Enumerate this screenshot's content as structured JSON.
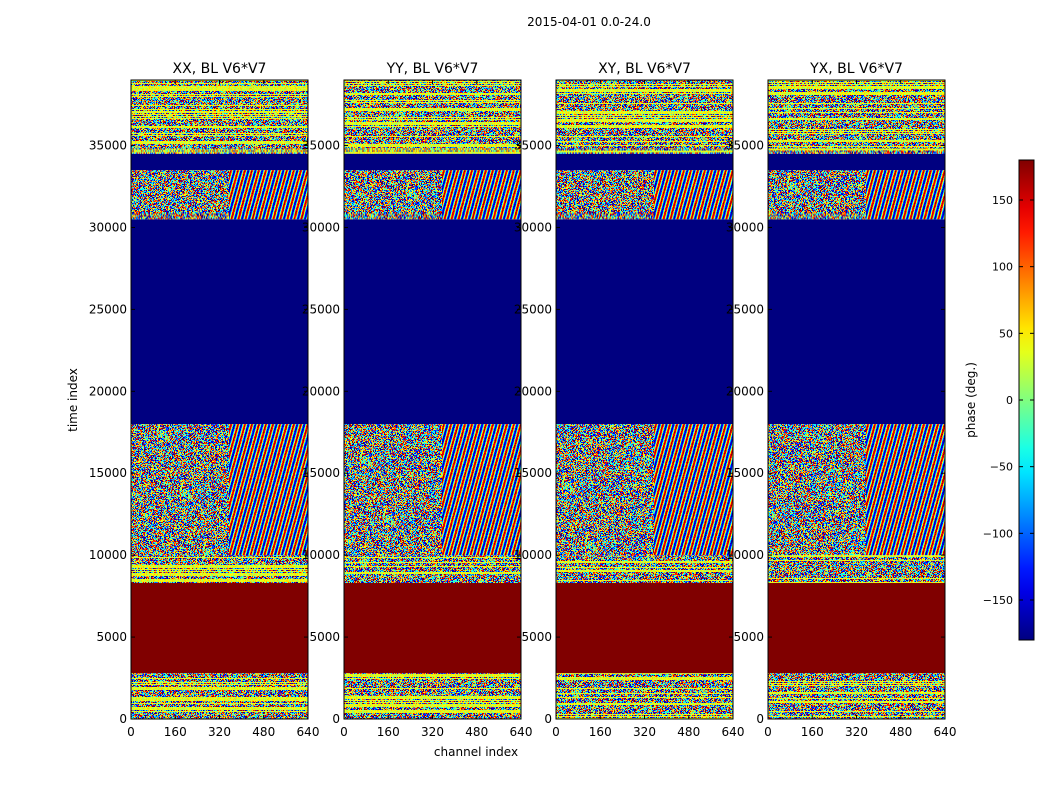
{
  "chart_data": {
    "type": "heatmap",
    "suptitle": "2015-04-01 0.0-24.0",
    "xlabel": "channel index",
    "ylabel": "time index",
    "xlim": [
      0,
      640
    ],
    "ylim": [
      0,
      39000
    ],
    "x_ticks": [
      0,
      160,
      320,
      480,
      640
    ],
    "y_ticks": [
      0,
      5000,
      10000,
      15000,
      20000,
      25000,
      30000,
      35000
    ],
    "x_tick_labels": [
      "0",
      "160",
      "320",
      "480",
      "640"
    ],
    "y_tick_labels": [
      "0",
      "5000",
      "10000",
      "15000",
      "20000",
      "25000",
      "30000",
      "35000"
    ],
    "y_tick_labels_clipped": [
      "0",
      "5000",
      "10000",
      "15000",
      "20000",
      "25000",
      "30000",
      "35000"
    ],
    "panels": [
      {
        "title": "XX, BL V6*V7",
        "pol": "XX"
      },
      {
        "title": "YY, BL V6*V7",
        "pol": "YY"
      },
      {
        "title": "XY, BL V6*V7",
        "pol": "XY"
      },
      {
        "title": "YX, BL V6*V7",
        "pol": "YX"
      }
    ],
    "time_bands": [
      {
        "from": 0,
        "to": 2800,
        "kind": "noise"
      },
      {
        "from": 2800,
        "to": 8300,
        "kind": "saturated",
        "value": 180
      },
      {
        "from": 8300,
        "to": 10000,
        "kind": "noise-green"
      },
      {
        "from": 10000,
        "to": 18000,
        "kind": "noise-fringe"
      },
      {
        "from": 18000,
        "to": 30500,
        "kind": "flagged",
        "value": -180
      },
      {
        "from": 30500,
        "to": 33500,
        "kind": "noise-fringe"
      },
      {
        "from": 33500,
        "to": 34500,
        "kind": "flagged",
        "value": -180
      },
      {
        "from": 34500,
        "to": 39000,
        "kind": "noise"
      }
    ],
    "colorbar": {
      "label": "phase (deg.)",
      "range": [
        -180,
        180
      ],
      "ticks": [
        150,
        100,
        50,
        0,
        -50,
        -100,
        -150
      ],
      "tick_labels": [
        "150",
        "100",
        "50",
        "0",
        "−50",
        "−100",
        "−150"
      ],
      "colormap": "jet"
    }
  }
}
